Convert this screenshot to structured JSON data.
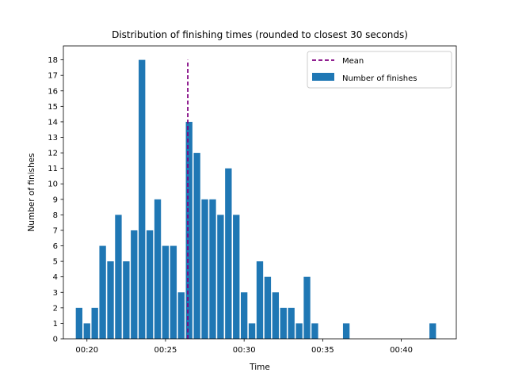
{
  "chart_data": {
    "type": "bar",
    "title": "Distribution of finishing times (rounded to closest 30 seconds)",
    "xlabel": "Time",
    "ylabel": "Number of finishes",
    "x_unit": "minutes (mm:ss)",
    "xlim": [
      "00:18:30",
      "00:43:30"
    ],
    "ylim": [
      0,
      18.9
    ],
    "x_ticks": [
      "00:20",
      "00:25",
      "00:30",
      "00:35",
      "00:40"
    ],
    "y_ticks": [
      0,
      1,
      2,
      3,
      4,
      5,
      6,
      7,
      8,
      9,
      10,
      11,
      12,
      13,
      14,
      15,
      16,
      17,
      18
    ],
    "grid": false,
    "legend_position": "upper right",
    "series": [
      {
        "name": "Number of finishes",
        "color": "#1f77b4",
        "x": [
          "00:19:30",
          "00:20:00",
          "00:20:30",
          "00:21:00",
          "00:21:30",
          "00:22:00",
          "00:22:30",
          "00:23:00",
          "00:23:30",
          "00:24:00",
          "00:24:30",
          "00:25:00",
          "00:25:30",
          "00:26:00",
          "00:26:30",
          "00:27:00",
          "00:27:30",
          "00:28:00",
          "00:28:30",
          "00:29:00",
          "00:29:30",
          "00:30:00",
          "00:30:30",
          "00:31:00",
          "00:31:30",
          "00:32:00",
          "00:32:30",
          "00:33:00",
          "00:33:30",
          "00:34:00",
          "00:34:30",
          "00:36:30",
          "00:42:00"
        ],
        "values": [
          2,
          1,
          2,
          6,
          5,
          8,
          5,
          7,
          18,
          7,
          9,
          6,
          6,
          3,
          14,
          12,
          9,
          9,
          8,
          11,
          8,
          3,
          1,
          5,
          4,
          3,
          2,
          2,
          1,
          4,
          1,
          1,
          1
        ]
      }
    ],
    "mean_line": {
      "name": "Mean",
      "x": "00:26:25",
      "y_range": [
        0,
        18
      ],
      "color": "#800080",
      "style": "dashed"
    }
  }
}
